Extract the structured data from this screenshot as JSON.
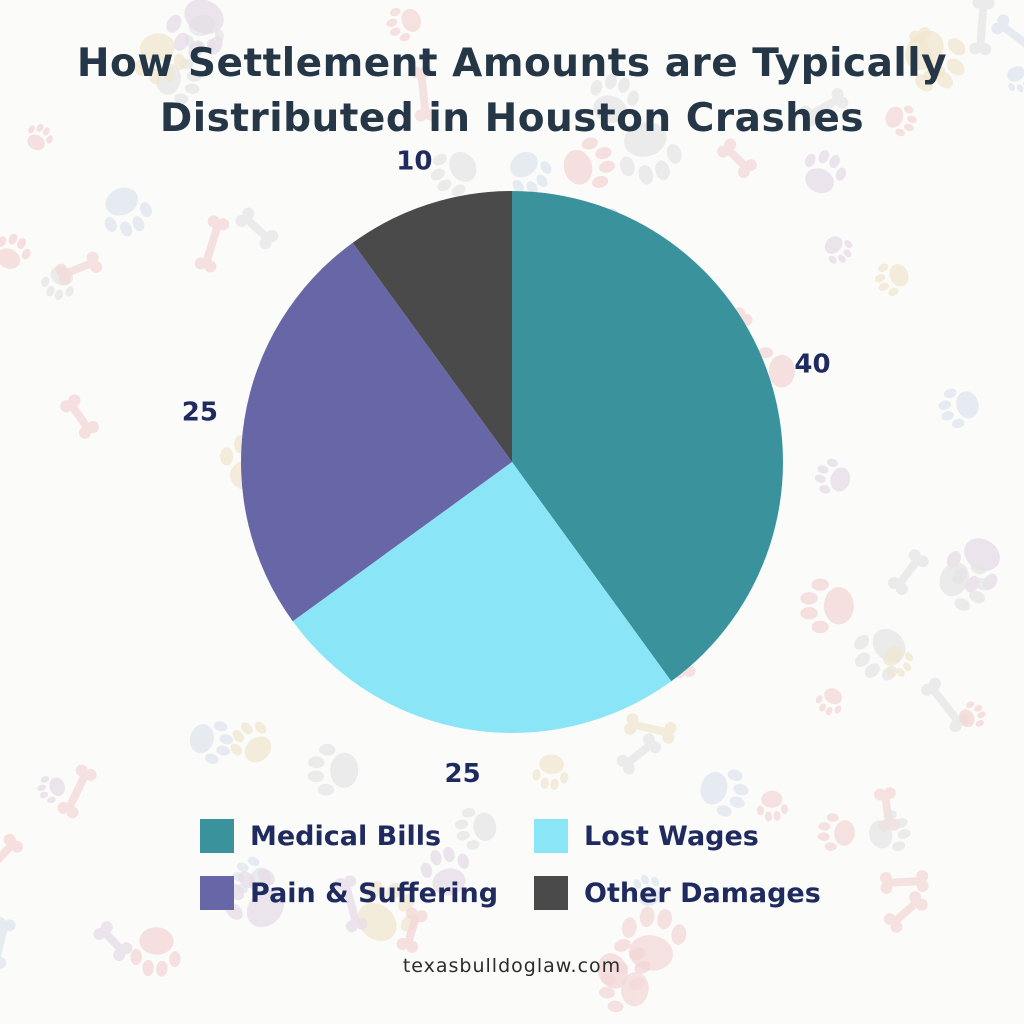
{
  "title_lines": [
    "How Settlement Amounts are Typically",
    "Distributed in Houston Crashes"
  ],
  "footer": "texasbulldoglaw.com",
  "background_color": "#fbfbfa",
  "background_pattern": "paw-print-and-bone-icons",
  "chart_data": {
    "type": "pie",
    "title": "How Settlement Amounts are Typically Distributed in Houston Crashes",
    "start": "12 o'clock, clockwise",
    "slices": [
      {
        "label": "Medical Bills",
        "value": 40,
        "color": "#3a939c"
      },
      {
        "label": "Lost Wages",
        "value": 25,
        "color": "#8ae6f7"
      },
      {
        "label": "Pain & Suffering",
        "value": 25,
        "color": "#6767a8"
      },
      {
        "label": "Other Damages",
        "value": 10,
        "color": "#4a4a4a"
      }
    ],
    "data_labels": [
      "40",
      "25",
      "25",
      "10"
    ],
    "legend_position": "bottom",
    "legend_columns": 2
  }
}
